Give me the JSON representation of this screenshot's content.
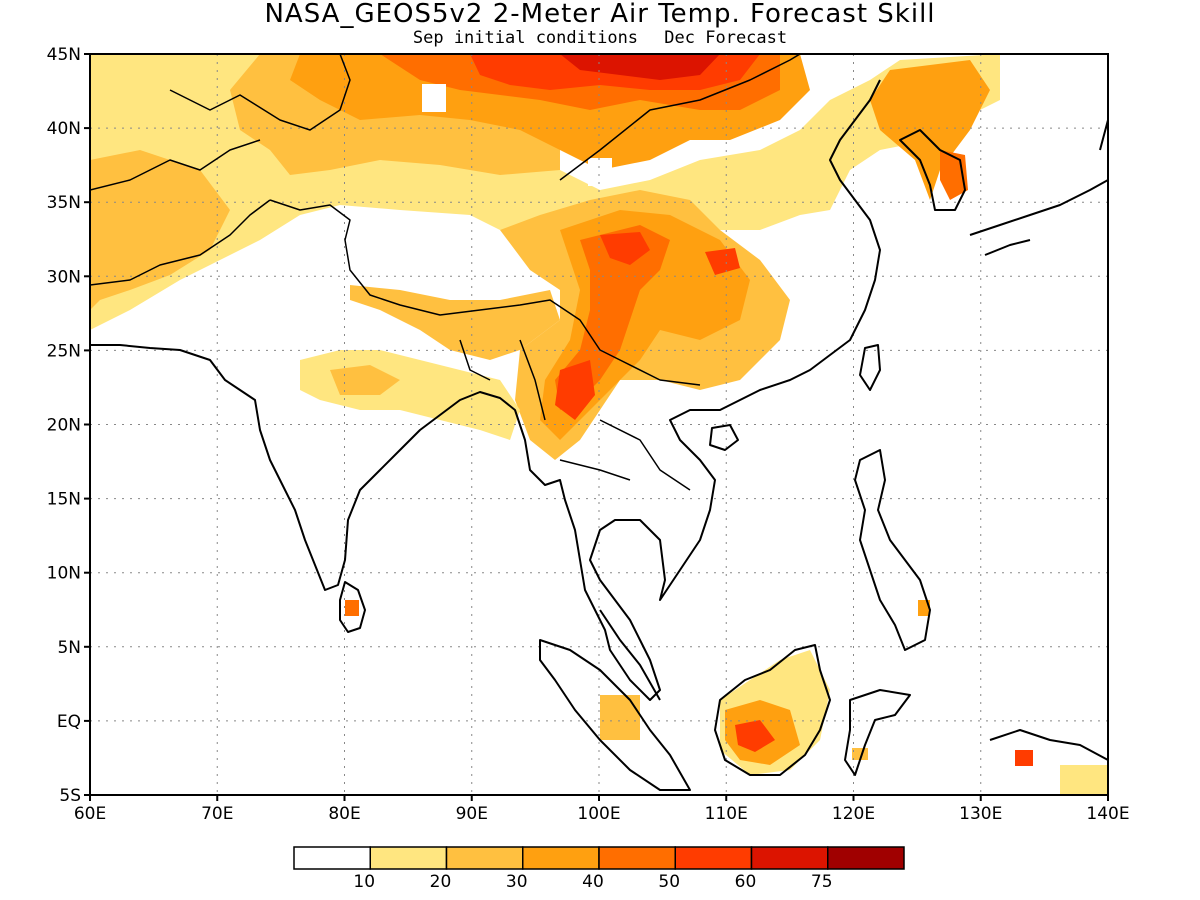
{
  "title": "NASA_GEOS5v2 2-Meter Air Temp. Forecast Skill",
  "subtitle_left": "Sep initial conditions",
  "subtitle_right": "Dec Forecast",
  "map": {
    "lon_range": [
      60,
      140
    ],
    "lat_range": [
      -5,
      45
    ],
    "lon_ticks": [
      "60E",
      "70E",
      "80E",
      "90E",
      "100E",
      "110E",
      "120E",
      "130E",
      "140E"
    ],
    "lat_ticks": [
      "45N",
      "40N",
      "35N",
      "30N",
      "25N",
      "20N",
      "15N",
      "10N",
      "5N",
      "EQ",
      "5S"
    ],
    "grid": "dotted"
  },
  "colorbar": {
    "levels": [
      "10",
      "20",
      "30",
      "40",
      "50",
      "60",
      "75"
    ],
    "colors": [
      "#ffffff",
      "#ffe680",
      "#ffc040",
      "#ffa010",
      "#ff6e00",
      "#ff3c00",
      "#dc1400",
      "#a00000"
    ]
  },
  "chart_data": {
    "type": "heatmap",
    "title": "NASA_GEOS5v2 2-Meter Air Temp. Forecast Skill",
    "subtitle": "Sep initial conditions  Dec Forecast",
    "xlim": [
      60,
      140
    ],
    "ylim": [
      -5,
      45
    ],
    "regions": [
      {
        "name": "",
        "lon": [
          90,
          110
        ],
        "lat": [
          41,
          45
        ],
        "value": 55
      },
      {
        "name": "",
        "lon": [
          77,
          105
        ],
        "lat": [
          36,
          44
        ],
        "value": 42
      },
      {
        "name": "",
        "lon": [
          60,
          77
        ],
        "lat": [
          31,
          42
        ],
        "value": 25
      },
      {
        "name": "",
        "lon": [
          60,
          67
        ],
        "lat": [
          27,
          35
        ],
        "value": 28
      },
      {
        "name": "",
        "lon": [
          96,
          115
        ],
        "lat": [
          22,
          36
        ],
        "value": 40
      },
      {
        "name": "",
        "lon": [
          99,
          104
        ],
        "lat": [
          26,
          33
        ],
        "value": 52
      },
      {
        "name": "",
        "lon": [
          95,
          99
        ],
        "lat": [
          18,
          24
        ],
        "value": 50
      },
      {
        "name": "",
        "lon": [
          104,
          120
        ],
        "lat": [
          21,
          32
        ],
        "value": 25
      },
      {
        "name": "",
        "lon": [
          108,
          112
        ],
        "lat": [
          29,
          32
        ],
        "value": 50
      },
      {
        "name": "",
        "lon": [
          125,
          130
        ],
        "lat": [
          36,
          44
        ],
        "value": 40
      },
      {
        "name": "",
        "lon": [
          84,
          97
        ],
        "lat": [
          22,
          27
        ],
        "value": 30
      },
      {
        "name": "",
        "lon": [
          81,
          90
        ],
        "lat": [
          20,
          24
        ],
        "value": 20
      },
      {
        "name": "",
        "lon": [
          109,
          118
        ],
        "lat": [
          -3,
          5
        ],
        "value": 35
      },
      {
        "name": "",
        "lon": [
          110,
          114
        ],
        "lat": [
          -2.5,
          0
        ],
        "value": 55
      },
      {
        "name": "",
        "lon": [
          80.2,
          81.2
        ],
        "lat": [
          6.8,
          7.8
        ],
        "value": 50
      }
    ]
  }
}
